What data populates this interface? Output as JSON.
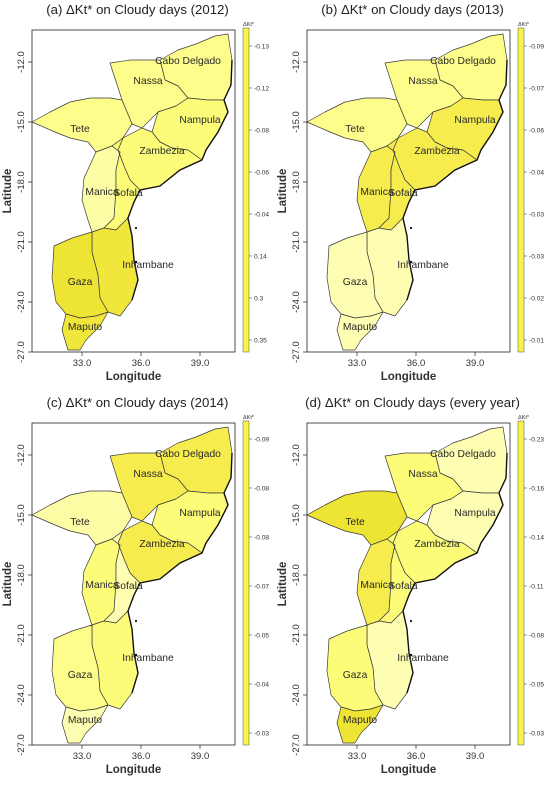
{
  "panels": [
    {
      "title": "(a) ΔKt* on Cloudy days (2012)",
      "legend_title": "ΔKt*",
      "legend_ticks": [
        "-0.13",
        "-0.12",
        "-0.08",
        "-0.06",
        "-0.04",
        "0.14",
        "0.3",
        "0.35"
      ],
      "colors": {
        "Cabo Delgado": "#FDFD8B",
        "Nassa": "#FDFD8B",
        "Nampula": "#FCFC78",
        "Zambezia": "#FCFC78",
        "Tete": "#FDFD8B",
        "Manica": "#FDFDA6",
        "Sofala": "#FCFC78",
        "Inhambane": "#F0E63C",
        "Gaza": "#EEE433",
        "Maputo": "#F0E63C"
      }
    },
    {
      "title": "(b) ΔKt* on Cloudy days (2013)",
      "legend_title": "ΔKt*",
      "legend_ticks": [
        "-0.09",
        "-0.07",
        "-0.06",
        "-0.04",
        "-0.03",
        "-0.03",
        "-0.02",
        "-0.01"
      ],
      "colors": {
        "Cabo Delgado": "#FDFD8B",
        "Nassa": "#FDFD8B",
        "Nampula": "#F6EC4E",
        "Zambezia": "#F6EC4E",
        "Tete": "#FDFD8B",
        "Manica": "#F6EC4E",
        "Sofala": "#F6EC4E",
        "Inhambane": "#FEFEB2",
        "Gaza": "#FEFEB2",
        "Maputo": "#FEFEB2"
      }
    },
    {
      "title": "(c) ΔKt* on Cloudy days (2014)",
      "legend_title": "ΔKt*",
      "legend_ticks": [
        "-0.09",
        "-0.08",
        "-0.08",
        "-0.07",
        "-0.05",
        "-0.04",
        "-0.03"
      ],
      "colors": {
        "Cabo Delgado": "#F6EC4E",
        "Nassa": "#F6EC4E",
        "Nampula": "#FCFC78",
        "Zambezia": "#F6EC4E",
        "Tete": "#FDFDA6",
        "Manica": "#FCFC78",
        "Sofala": "#FEFEB2",
        "Inhambane": "#FCFC78",
        "Gaza": "#FDFD8B",
        "Maputo": "#FEFEB2"
      }
    },
    {
      "title": "(d) ΔKt* on Cloudy days (every year)",
      "legend_title": "ΔKt*",
      "legend_ticks": [
        "-0.23",
        "-0.16",
        "-0.14",
        "-0.11",
        "-0.08",
        "-0.05",
        "-0.03"
      ],
      "colors": {
        "Cabo Delgado": "#FEFEB2",
        "Nassa": "#FCFC78",
        "Nampula": "#FEFEB2",
        "Zambezia": "#FCFC78",
        "Tete": "#EEE433",
        "Manica": "#F6EC4E",
        "Sofala": "#FCFC78",
        "Inhambane": "#FEFEB2",
        "Gaza": "#FCFC78",
        "Maputo": "#EEE433"
      }
    }
  ],
  "axes": {
    "xlabel": "Longitude",
    "ylabel": "Latitude",
    "x_ticks": [
      "33.0",
      "36.0",
      "39.0"
    ],
    "y_ticks": [
      "-12.0",
      "-15.0",
      "-18.0",
      "-21.0",
      "-24.0",
      "-27.0"
    ]
  },
  "provinces": [
    "Cabo Delgado",
    "Nassa",
    "Nampula",
    "Zambezia",
    "Tete",
    "Manica",
    "Sofala",
    "Inhambane",
    "Gaza",
    "Maputo"
  ]
}
